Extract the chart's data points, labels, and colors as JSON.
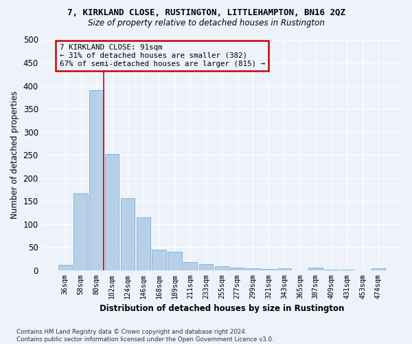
{
  "title": "7, KIRKLAND CLOSE, RUSTINGTON, LITTLEHAMPTON, BN16 2QZ",
  "subtitle": "Size of property relative to detached houses in Rustington",
  "xlabel": "Distribution of detached houses by size in Rustington",
  "ylabel": "Number of detached properties",
  "bar_color": "#b8cfe8",
  "bar_edge_color": "#7aadd4",
  "categories": [
    "36sqm",
    "58sqm",
    "80sqm",
    "102sqm",
    "124sqm",
    "146sqm",
    "168sqm",
    "189sqm",
    "211sqm",
    "233sqm",
    "255sqm",
    "277sqm",
    "299sqm",
    "321sqm",
    "343sqm",
    "365sqm",
    "387sqm",
    "409sqm",
    "431sqm",
    "453sqm",
    "474sqm"
  ],
  "values": [
    12,
    167,
    390,
    251,
    157,
    115,
    44,
    40,
    17,
    13,
    9,
    6,
    4,
    3,
    4,
    0,
    5,
    1,
    1,
    0,
    4
  ],
  "ylim": [
    0,
    500
  ],
  "yticks": [
    0,
    50,
    100,
    150,
    200,
    250,
    300,
    350,
    400,
    450,
    500
  ],
  "property_line_idx": 2,
  "property_line_color": "#cc0000",
  "annotation_text": "7 KIRKLAND CLOSE: 91sqm\n← 31% of detached houses are smaller (382)\n67% of semi-detached houses are larger (815) →",
  "annotation_box_color": "#cc0000",
  "background_color": "#eef2fb",
  "grid_color": "#ffffff",
  "footer": "Contains HM Land Registry data © Crown copyright and database right 2024.\nContains public sector information licensed under the Open Government Licence v3.0."
}
